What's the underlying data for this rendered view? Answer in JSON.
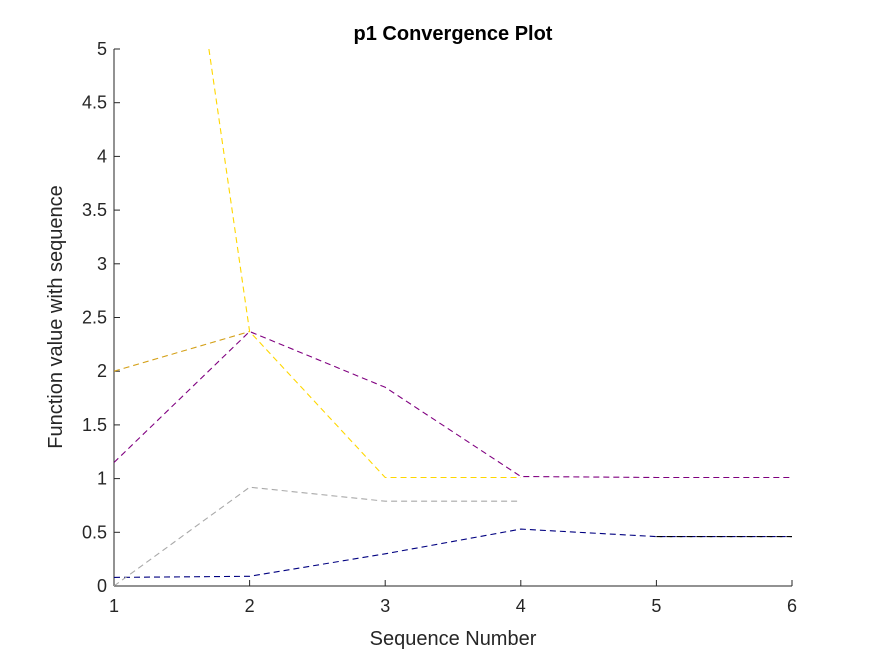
{
  "chart_data": {
    "type": "line",
    "title": "p1 Convergence Plot",
    "xlabel": "Sequence Number",
    "ylabel": "Function value with sequence",
    "xlim": [
      1,
      6
    ],
    "ylim": [
      0,
      5
    ],
    "xticks": [
      "1",
      "2",
      "3",
      "4",
      "5",
      "6"
    ],
    "yticks": [
      "0",
      "0.5",
      "1",
      "1.5",
      "2",
      "2.5",
      "3",
      "3.5",
      "4",
      "4.5",
      "5"
    ],
    "grid": false,
    "series": [
      {
        "color": "#000080",
        "x": [
          1,
          2,
          3,
          4,
          5,
          6
        ],
        "y": [
          0.08,
          0.09,
          0.3,
          0.53,
          0.46,
          0.46
        ]
      },
      {
        "color": "#a9a9a9",
        "x": [
          1,
          2,
          3,
          4
        ],
        "y": [
          0.0,
          0.92,
          0.79,
          0.79
        ]
      },
      {
        "color": "#d4a017",
        "x": [
          1,
          2
        ],
        "y": [
          2.0,
          2.37
        ]
      },
      {
        "color": "#800080",
        "x": [
          1,
          2,
          3,
          4,
          5,
          6
        ],
        "y": [
          1.15,
          2.37,
          1.85,
          1.02,
          1.01,
          1.01
        ]
      },
      {
        "color": "#ffd700",
        "x": [
          1.7,
          2,
          3,
          4
        ],
        "y": [
          5.0,
          2.37,
          1.01,
          1.01
        ]
      },
      {
        "color": "#000000",
        "x": [
          5,
          6
        ],
        "y": [
          0.46,
          0.46
        ]
      }
    ]
  }
}
